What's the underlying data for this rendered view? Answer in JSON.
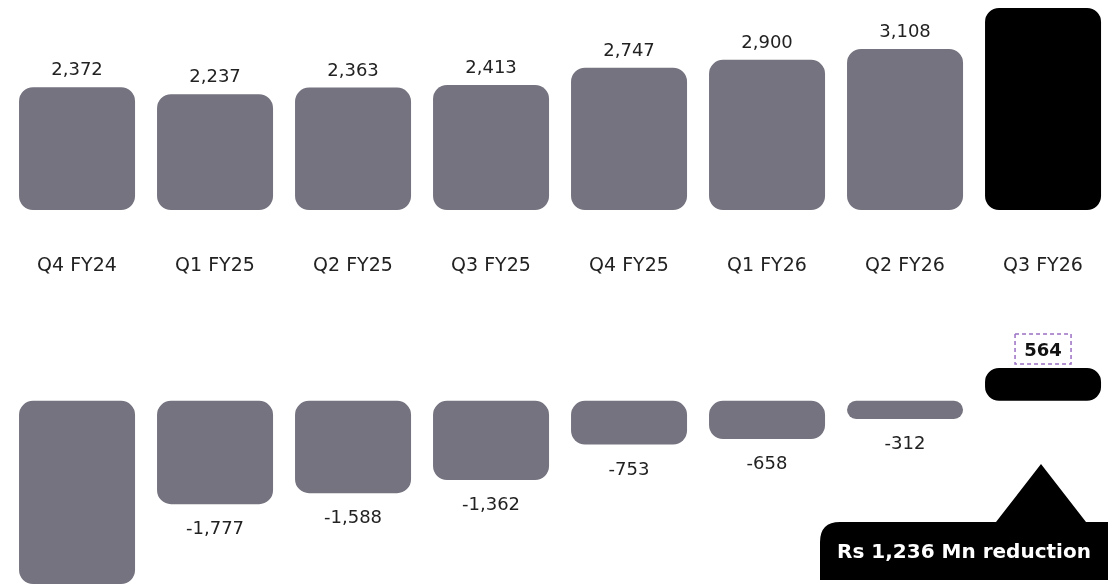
{
  "chart_data": [
    {
      "type": "bar",
      "categories": [
        "Q4 FY24",
        "Q1 FY25",
        "Q2 FY25",
        "Q3 FY25",
        "Q4 FY25",
        "Q1 FY26",
        "Q2 FY26",
        "Q3 FY26"
      ],
      "values": [
        2372,
        2237,
        2363,
        2413,
        2747,
        2900,
        3108,
        3900
      ],
      "value_labels": [
        "2,372",
        "2,237",
        "2,363",
        "2,413",
        "2,747",
        "2,900",
        "3,108",
        null
      ],
      "colors": [
        "#74737f",
        "#74737f",
        "#74737f",
        "#74737f",
        "#74737f",
        "#74737f",
        "#74737f",
        "#000000"
      ],
      "ylim": [
        0,
        3900
      ],
      "tick_labels": "x",
      "grid": false,
      "legend": false
    },
    {
      "type": "bar",
      "categories": [
        null,
        null,
        null,
        null,
        null,
        null,
        null,
        null
      ],
      "values": [
        -3150,
        -1777,
        -1588,
        -1362,
        -753,
        -658,
        -312,
        564
      ],
      "value_labels": [
        null,
        "-1,777",
        "-1,588",
        "-1,362",
        "-753",
        "-658",
        "-312",
        "564"
      ],
      "colors": [
        "#74737f",
        "#74737f",
        "#74737f",
        "#74737f",
        "#74737f",
        "#74737f",
        "#74737f",
        "#000000"
      ],
      "ylim": [
        -3150,
        564
      ],
      "tick_labels": false,
      "grid": false,
      "legend": false,
      "annotations": [
        "Rs 1,236 Mn reduction"
      ]
    }
  ]
}
